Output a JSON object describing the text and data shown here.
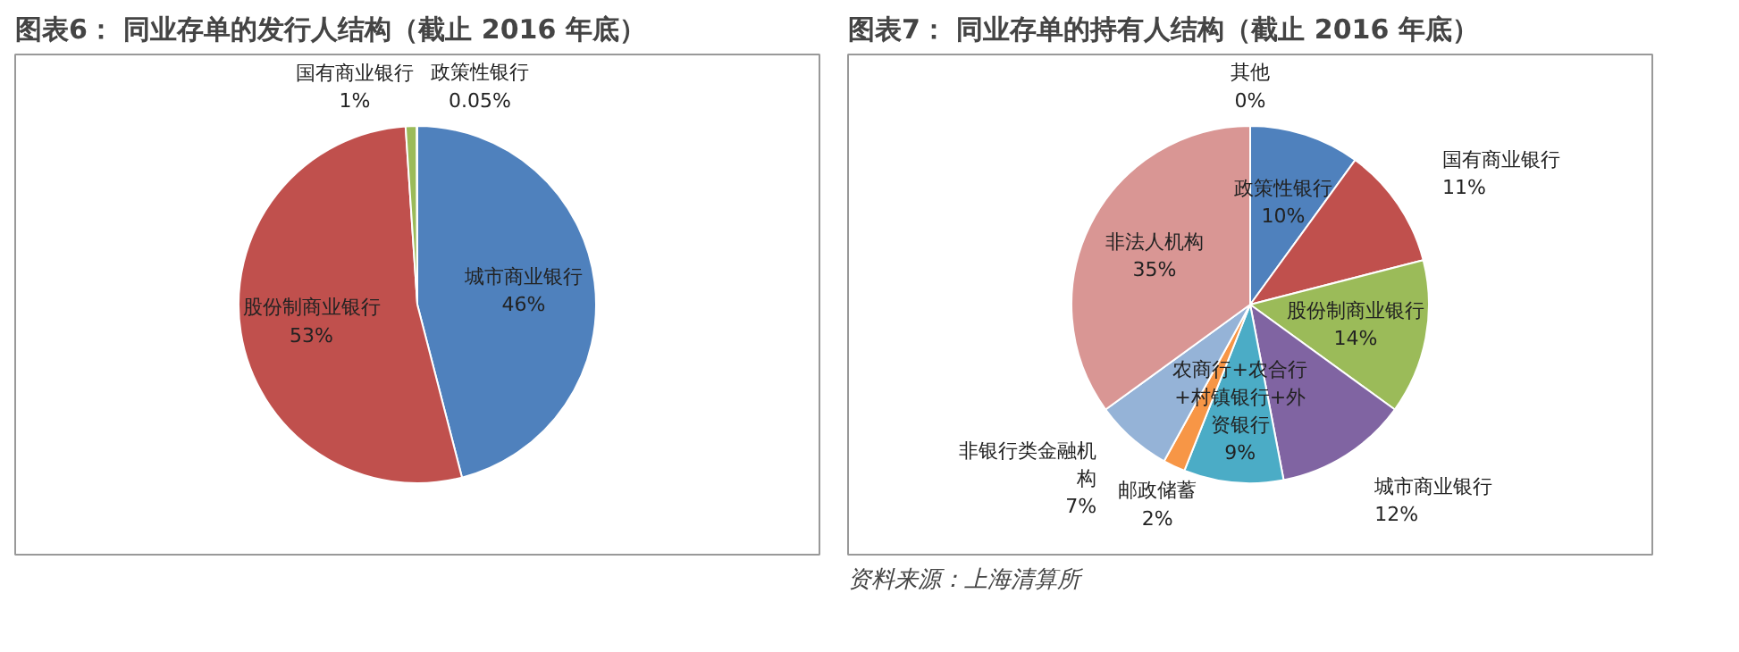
{
  "chart_data": [
    {
      "type": "pie",
      "title": "图表6：  同业存单的发行人结构（截止 2016 年底）",
      "categories": [
        "城市商业银行",
        "股份制商业银行",
        "国有商业银行",
        "政策性银行"
      ],
      "values": [
        46,
        53,
        1,
        0.05
      ],
      "value_labels": [
        "46%",
        "53%",
        "1%",
        "0.05%"
      ],
      "colors": [
        "#4f81bd",
        "#c0504d",
        "#9bbb59",
        "#8064a2"
      ]
    },
    {
      "type": "pie",
      "title": "图表7：  同业存单的持有人结构（截止 2016 年底）",
      "categories": [
        "其他",
        "政策性银行",
        "国有商业银行",
        "股份制商业银行",
        "城市商业银行",
        "农商行+农合行+村镇银行+外资银行",
        "邮政储蓄",
        "非银行类金融机构",
        "非法人机构"
      ],
      "values": [
        0,
        10,
        11,
        14,
        12,
        9,
        2,
        7,
        35
      ],
      "value_labels": [
        "0%",
        "10%",
        "11%",
        "14%",
        "12%",
        "9%",
        "2%",
        "7%",
        "35%"
      ],
      "colors": [
        "#f2f2f2",
        "#4f81bd",
        "#c0504d",
        "#9bbb59",
        "#8064a2",
        "#4bacc6",
        "#f79646",
        "#95b3d7",
        "#d99694"
      ],
      "annotations": [
        "资料来源：上海清算所"
      ]
    }
  ]
}
